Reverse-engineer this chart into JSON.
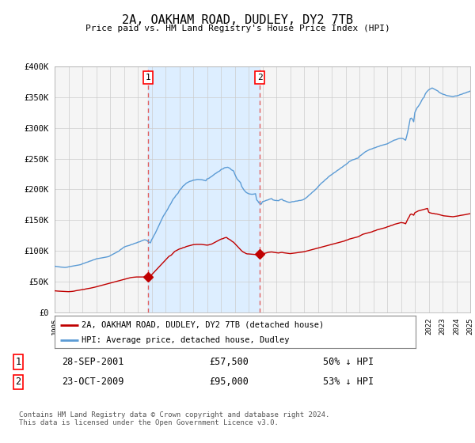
{
  "title": "2A, OAKHAM ROAD, DUDLEY, DY2 7TB",
  "subtitle": "Price paid vs. HM Land Registry's House Price Index (HPI)",
  "background_color": "#ffffff",
  "plot_bg_color": "#f5f5f5",
  "grid_color": "#cccccc",
  "ylim": [
    0,
    400000
  ],
  "yticks": [
    0,
    50000,
    100000,
    150000,
    200000,
    250000,
    300000,
    350000,
    400000
  ],
  "ytick_labels": [
    "£0",
    "£50K",
    "£100K",
    "£150K",
    "£200K",
    "£250K",
    "£300K",
    "£350K",
    "£400K"
  ],
  "year_start": 1995,
  "year_end": 2025,
  "hpi_color": "#5b9bd5",
  "property_color": "#c00000",
  "sale1_date": "28-SEP-2001",
  "sale1_price": 57500,
  "sale1_year": 2001.75,
  "sale1_label": "50% ↓ HPI",
  "sale2_date": "23-OCT-2009",
  "sale2_price": 95000,
  "sale2_year": 2009.8,
  "sale2_label": "53% ↓ HPI",
  "legend_label_property": "2A, OAKHAM ROAD, DUDLEY, DY2 7TB (detached house)",
  "legend_label_hpi": "HPI: Average price, detached house, Dudley",
  "footer": "Contains HM Land Registry data © Crown copyright and database right 2024.\nThis data is licensed under the Open Government Licence v3.0.",
  "vline_color": "#e06060",
  "shade_color": "#ddeeff",
  "hpi_data_years": [
    1995.0,
    1995.083,
    1995.167,
    1995.25,
    1995.333,
    1995.417,
    1995.5,
    1995.583,
    1995.667,
    1995.75,
    1995.833,
    1995.917,
    1996.0,
    1996.083,
    1996.167,
    1996.25,
    1996.333,
    1996.417,
    1996.5,
    1996.583,
    1996.667,
    1996.75,
    1996.833,
    1996.917,
    1997.0,
    1997.083,
    1997.167,
    1997.25,
    1997.333,
    1997.417,
    1997.5,
    1997.583,
    1997.667,
    1997.75,
    1997.833,
    1997.917,
    1998.0,
    1998.083,
    1998.167,
    1998.25,
    1998.333,
    1998.417,
    1998.5,
    1998.583,
    1998.667,
    1998.75,
    1998.833,
    1998.917,
    1999.0,
    1999.083,
    1999.167,
    1999.25,
    1999.333,
    1999.417,
    1999.5,
    1999.583,
    1999.667,
    1999.75,
    1999.833,
    1999.917,
    2000.0,
    2000.083,
    2000.167,
    2000.25,
    2000.333,
    2000.417,
    2000.5,
    2000.583,
    2000.667,
    2000.75,
    2000.833,
    2000.917,
    2001.0,
    2001.083,
    2001.167,
    2001.25,
    2001.333,
    2001.417,
    2001.5,
    2001.583,
    2001.667,
    2001.75,
    2001.833,
    2001.917,
    2002.0,
    2002.083,
    2002.167,
    2002.25,
    2002.333,
    2002.417,
    2002.5,
    2002.583,
    2002.667,
    2002.75,
    2002.833,
    2002.917,
    2003.0,
    2003.083,
    2003.167,
    2003.25,
    2003.333,
    2003.417,
    2003.5,
    2003.583,
    2003.667,
    2003.75,
    2003.833,
    2003.917,
    2004.0,
    2004.083,
    2004.167,
    2004.25,
    2004.333,
    2004.417,
    2004.5,
    2004.583,
    2004.667,
    2004.75,
    2004.833,
    2004.917,
    2005.0,
    2005.083,
    2005.167,
    2005.25,
    2005.333,
    2005.417,
    2005.5,
    2005.583,
    2005.667,
    2005.75,
    2005.833,
    2005.917,
    2006.0,
    2006.083,
    2006.167,
    2006.25,
    2006.333,
    2006.417,
    2006.5,
    2006.583,
    2006.667,
    2006.75,
    2006.833,
    2006.917,
    2007.0,
    2007.083,
    2007.167,
    2007.25,
    2007.333,
    2007.417,
    2007.5,
    2007.583,
    2007.667,
    2007.75,
    2007.833,
    2007.917,
    2008.0,
    2008.083,
    2008.167,
    2008.25,
    2008.333,
    2008.417,
    2008.5,
    2008.583,
    2008.667,
    2008.75,
    2008.833,
    2008.917,
    2009.0,
    2009.083,
    2009.167,
    2009.25,
    2009.333,
    2009.417,
    2009.5,
    2009.583,
    2009.667,
    2009.75,
    2009.833,
    2009.917,
    2010.0,
    2010.083,
    2010.167,
    2010.25,
    2010.333,
    2010.417,
    2010.5,
    2010.583,
    2010.667,
    2010.75,
    2010.833,
    2010.917,
    2011.0,
    2011.083,
    2011.167,
    2011.25,
    2011.333,
    2011.417,
    2011.5,
    2011.583,
    2011.667,
    2011.75,
    2011.833,
    2011.917,
    2012.0,
    2012.083,
    2012.167,
    2012.25,
    2012.333,
    2012.417,
    2012.5,
    2012.583,
    2012.667,
    2012.75,
    2012.833,
    2012.917,
    2013.0,
    2013.083,
    2013.167,
    2013.25,
    2013.333,
    2013.417,
    2013.5,
    2013.583,
    2013.667,
    2013.75,
    2013.833,
    2013.917,
    2014.0,
    2014.083,
    2014.167,
    2014.25,
    2014.333,
    2014.417,
    2014.5,
    2014.583,
    2014.667,
    2014.75,
    2014.833,
    2014.917,
    2015.0,
    2015.083,
    2015.167,
    2015.25,
    2015.333,
    2015.417,
    2015.5,
    2015.583,
    2015.667,
    2015.75,
    2015.833,
    2015.917,
    2016.0,
    2016.083,
    2016.167,
    2016.25,
    2016.333,
    2016.417,
    2016.5,
    2016.583,
    2016.667,
    2016.75,
    2016.833,
    2016.917,
    2017.0,
    2017.083,
    2017.167,
    2017.25,
    2017.333,
    2017.417,
    2017.5,
    2017.583,
    2017.667,
    2017.75,
    2017.833,
    2017.917,
    2018.0,
    2018.083,
    2018.167,
    2018.25,
    2018.333,
    2018.417,
    2018.5,
    2018.583,
    2018.667,
    2018.75,
    2018.833,
    2018.917,
    2019.0,
    2019.083,
    2019.167,
    2019.25,
    2019.333,
    2019.417,
    2019.5,
    2019.583,
    2019.667,
    2019.75,
    2019.833,
    2019.917,
    2020.0,
    2020.083,
    2020.167,
    2020.25,
    2020.333,
    2020.417,
    2020.5,
    2020.583,
    2020.667,
    2020.75,
    2020.833,
    2020.917,
    2021.0,
    2021.083,
    2021.167,
    2021.25,
    2021.333,
    2021.417,
    2021.5,
    2021.583,
    2021.667,
    2021.75,
    2021.833,
    2021.917,
    2022.0,
    2022.083,
    2022.167,
    2022.25,
    2022.333,
    2022.417,
    2022.5,
    2022.583,
    2022.667,
    2022.75,
    2022.833,
    2022.917,
    2023.0,
    2023.083,
    2023.167,
    2023.25,
    2023.333,
    2023.417,
    2023.5,
    2023.583,
    2023.667,
    2023.75,
    2023.833,
    2023.917,
    2024.0,
    2024.083,
    2024.167,
    2024.25,
    2024.333,
    2024.417,
    2024.5,
    2024.583,
    2024.667,
    2024.75,
    2024.833,
    2024.917,
    2025.0
  ],
  "hpi_data_values": [
    75000,
    74800,
    74500,
    74200,
    73900,
    73700,
    73500,
    73300,
    73100,
    73000,
    73200,
    73500,
    74000,
    74300,
    74600,
    75000,
    75400,
    75700,
    76000,
    76400,
    76700,
    77000,
    77400,
    77800,
    79000,
    79500,
    80000,
    81000,
    81500,
    82000,
    83000,
    83500,
    84000,
    85000,
    85500,
    86000,
    87000,
    87300,
    87700,
    88000,
    88300,
    88600,
    89000,
    89300,
    89600,
    90000,
    90400,
    90800,
    92000,
    93000,
    94000,
    95000,
    96000,
    97000,
    98000,
    99000,
    100000,
    102000,
    103000,
    104500,
    106000,
    106800,
    107500,
    108000,
    108500,
    109000,
    110000,
    110500,
    111000,
    112000,
    112500,
    113000,
    114000,
    114500,
    115000,
    116000,
    116800,
    117500,
    118000,
    117500,
    117000,
    115000,
    114000,
    113000,
    118000,
    121000,
    125000,
    128000,
    132000,
    136000,
    140000,
    144000,
    148000,
    152000,
    156000,
    159000,
    162000,
    165000,
    168000,
    172000,
    175000,
    178000,
    182000,
    185000,
    187000,
    190000,
    192000,
    194000,
    198000,
    200000,
    202000,
    205000,
    206500,
    208000,
    210000,
    211000,
    212000,
    213000,
    213500,
    214000,
    215000,
    215200,
    215400,
    216000,
    216200,
    216100,
    216000,
    215800,
    215500,
    215000,
    214500,
    214000,
    217000,
    217500,
    218500,
    220000,
    221000,
    222500,
    224000,
    225500,
    226500,
    228000,
    229000,
    230000,
    232000,
    233000,
    233500,
    235000,
    235500,
    235800,
    236000,
    235000,
    234000,
    232000,
    231000,
    230000,
    225000,
    221000,
    217000,
    215000,
    213000,
    211000,
    205000,
    202000,
    199000,
    197000,
    195000,
    194000,
    193000,
    192500,
    192200,
    192000,
    192200,
    192500,
    193000,
    183000,
    181000,
    178000,
    177000,
    176000,
    180000,
    180500,
    181000,
    182000,
    182500,
    183000,
    184000,
    184500,
    185000,
    183000,
    182500,
    182000,
    182000,
    181800,
    181600,
    183000,
    183500,
    184000,
    182000,
    181500,
    181000,
    180000,
    179500,
    179000,
    179000,
    179500,
    180000,
    180000,
    180500,
    181000,
    181000,
    181500,
    182000,
    182000,
    182500,
    183000,
    184000,
    185000,
    186500,
    188000,
    190000,
    191500,
    193000,
    195000,
    196500,
    198000,
    200000,
    201500,
    204000,
    206000,
    208000,
    210000,
    211500,
    213000,
    215000,
    216500,
    218000,
    220000,
    221500,
    223000,
    224000,
    225500,
    227000,
    228000,
    229500,
    231000,
    232000,
    233500,
    235000,
    236000,
    237500,
    239000,
    240000,
    241500,
    243000,
    245000,
    246000,
    247000,
    248000,
    248500,
    249000,
    250000,
    250500,
    251000,
    254000,
    255000,
    256500,
    258000,
    259500,
    261000,
    262000,
    263000,
    264000,
    265000,
    265500,
    266000,
    267000,
    267500,
    268000,
    269000,
    269500,
    270000,
    271000,
    271500,
    272000,
    272500,
    273000,
    273500,
    274000,
    275000,
    276000,
    277000,
    278000,
    279000,
    280000,
    280500,
    281000,
    282000,
    282500,
    283000,
    283000,
    283000,
    282500,
    281000,
    280000,
    287000,
    295000,
    305000,
    315000,
    316000,
    314000,
    310000,
    325000,
    329000,
    333000,
    335000,
    338000,
    341000,
    345000,
    348000,
    350000,
    355000,
    358000,
    360000,
    362000,
    363000,
    364000,
    365000,
    364000,
    363000,
    362000,
    361000,
    360000,
    358000,
    357000,
    356000,
    355000,
    354500,
    354000,
    353000,
    352500,
    352200,
    352000,
    351500,
    351200,
    351000,
    351500,
    352000,
    352000,
    352500,
    353000,
    354000,
    354500,
    355000,
    356000,
    356500,
    357000,
    358000,
    358500,
    359000,
    360000
  ],
  "prop_data_years": [
    1995.0,
    1995.083,
    1995.167,
    1995.25,
    1995.333,
    1995.417,
    1995.5,
    1995.583,
    1995.667,
    1995.75,
    1995.833,
    1995.917,
    1996.0,
    1996.083,
    1996.167,
    1996.25,
    1996.333,
    1996.417,
    1996.5,
    1996.583,
    1996.667,
    1996.75,
    1996.833,
    1996.917,
    1997.0,
    1997.083,
    1997.167,
    1997.25,
    1997.333,
    1997.417,
    1997.5,
    1997.583,
    1997.667,
    1997.75,
    1997.833,
    1997.917,
    1998.0,
    1998.083,
    1998.167,
    1998.25,
    1998.333,
    1998.417,
    1998.5,
    1998.583,
    1998.667,
    1998.75,
    1998.833,
    1998.917,
    1999.0,
    1999.083,
    1999.167,
    1999.25,
    1999.333,
    1999.417,
    1999.5,
    1999.583,
    1999.667,
    1999.75,
    1999.833,
    1999.917,
    2000.0,
    2000.083,
    2000.167,
    2000.25,
    2000.333,
    2000.417,
    2000.5,
    2000.583,
    2000.667,
    2000.75,
    2000.833,
    2000.917,
    2001.0,
    2001.083,
    2001.167,
    2001.25,
    2001.333,
    2001.417,
    2001.5,
    2001.583,
    2001.667,
    2001.75,
    2001.833,
    2001.917,
    2002.0,
    2002.083,
    2002.167,
    2002.25,
    2002.333,
    2002.417,
    2002.5,
    2002.583,
    2002.667,
    2002.75,
    2002.833,
    2002.917,
    2003.0,
    2003.083,
    2003.167,
    2003.25,
    2003.333,
    2003.417,
    2003.5,
    2003.583,
    2003.667,
    2003.75,
    2003.833,
    2003.917,
    2004.0,
    2004.083,
    2004.167,
    2004.25,
    2004.333,
    2004.417,
    2004.5,
    2004.583,
    2004.667,
    2004.75,
    2004.833,
    2004.917,
    2005.0,
    2005.083,
    2005.167,
    2005.25,
    2005.333,
    2005.417,
    2005.5,
    2005.583,
    2005.667,
    2005.75,
    2005.833,
    2005.917,
    2006.0,
    2006.083,
    2006.167,
    2006.25,
    2006.333,
    2006.417,
    2006.5,
    2006.583,
    2006.667,
    2006.75,
    2006.833,
    2006.917,
    2007.0,
    2007.083,
    2007.167,
    2007.25,
    2007.333,
    2007.417,
    2007.5,
    2007.583,
    2007.667,
    2007.75,
    2007.833,
    2007.917,
    2008.0,
    2008.083,
    2008.167,
    2008.25,
    2008.333,
    2008.417,
    2008.5,
    2008.583,
    2008.667,
    2008.75,
    2008.833,
    2008.917,
    2009.0,
    2009.083,
    2009.167,
    2009.25,
    2009.333,
    2009.417,
    2009.5,
    2009.583,
    2009.667,
    2009.75,
    2009.833,
    2009.917,
    2010.0,
    2010.083,
    2010.167,
    2010.25,
    2010.333,
    2010.417,
    2010.5,
    2010.583,
    2010.667,
    2010.75,
    2010.833,
    2010.917,
    2011.0,
    2011.083,
    2011.167,
    2011.25,
    2011.333,
    2011.417,
    2011.5,
    2011.583,
    2011.667,
    2011.75,
    2011.833,
    2011.917,
    2012.0,
    2012.083,
    2012.167,
    2012.25,
    2012.333,
    2012.417,
    2012.5,
    2012.583,
    2012.667,
    2012.75,
    2012.833,
    2012.917,
    2013.0,
    2013.083,
    2013.167,
    2013.25,
    2013.333,
    2013.417,
    2013.5,
    2013.583,
    2013.667,
    2013.75,
    2013.833,
    2013.917,
    2014.0,
    2014.083,
    2014.167,
    2014.25,
    2014.333,
    2014.417,
    2014.5,
    2014.583,
    2014.667,
    2014.75,
    2014.833,
    2014.917,
    2015.0,
    2015.083,
    2015.167,
    2015.25,
    2015.333,
    2015.417,
    2015.5,
    2015.583,
    2015.667,
    2015.75,
    2015.833,
    2015.917,
    2016.0,
    2016.083,
    2016.167,
    2016.25,
    2016.333,
    2016.417,
    2016.5,
    2016.583,
    2016.667,
    2016.75,
    2016.833,
    2016.917,
    2017.0,
    2017.083,
    2017.167,
    2017.25,
    2017.333,
    2017.417,
    2017.5,
    2017.583,
    2017.667,
    2017.75,
    2017.833,
    2017.917,
    2018.0,
    2018.083,
    2018.167,
    2018.25,
    2018.333,
    2018.417,
    2018.5,
    2018.583,
    2018.667,
    2018.75,
    2018.833,
    2018.917,
    2019.0,
    2019.083,
    2019.167,
    2019.25,
    2019.333,
    2019.417,
    2019.5,
    2019.583,
    2019.667,
    2019.75,
    2019.833,
    2019.917,
    2020.0,
    2020.083,
    2020.167,
    2020.25,
    2020.333,
    2020.417,
    2020.5,
    2020.583,
    2020.667,
    2020.75,
    2020.833,
    2020.917,
    2021.0,
    2021.083,
    2021.167,
    2021.25,
    2021.333,
    2021.417,
    2021.5,
    2021.583,
    2021.667,
    2021.75,
    2021.833,
    2021.917,
    2022.0,
    2022.083,
    2022.167,
    2022.25,
    2022.333,
    2022.417,
    2022.5,
    2022.583,
    2022.667,
    2022.75,
    2022.833,
    2022.917,
    2023.0,
    2023.083,
    2023.167,
    2023.25,
    2023.333,
    2023.417,
    2023.5,
    2023.583,
    2023.667,
    2023.75,
    2023.833,
    2023.917,
    2024.0,
    2024.083,
    2024.167,
    2024.25,
    2024.333,
    2024.417,
    2024.5,
    2024.583,
    2024.667,
    2024.75,
    2024.833,
    2024.917,
    2025.0
  ],
  "prop_data_values": [
    35000,
    34800,
    34600,
    34500,
    34400,
    34300,
    34200,
    34100,
    34000,
    33900,
    33800,
    33700,
    33600,
    33700,
    33800,
    34000,
    34200,
    34500,
    35000,
    35300,
    35600,
    36000,
    36300,
    36600,
    37000,
    37200,
    37500,
    38000,
    38300,
    38700,
    39000,
    39300,
    39700,
    40000,
    40500,
    41000,
    41500,
    42000,
    42500,
    43000,
    43500,
    44000,
    44500,
    45000,
    45500,
    46000,
    46500,
    47000,
    47500,
    48000,
    48500,
    49000,
    49500,
    50000,
    50500,
    51000,
    51500,
    52000,
    52500,
    53000,
    53500,
    54000,
    54500,
    55000,
    55500,
    56000,
    56500,
    56800,
    57000,
    57200,
    57400,
    57500,
    57500,
    57500,
    57500,
    57500,
    57500,
    57500,
    57500,
    57500,
    57500,
    57500,
    58000,
    59000,
    61000,
    63000,
    65000,
    67000,
    69000,
    71000,
    73000,
    75000,
    77000,
    79000,
    81000,
    83000,
    85000,
    87000,
    89000,
    91000,
    92000,
    93000,
    95000,
    97000,
    99000,
    100000,
    101000,
    102000,
    103000,
    103500,
    104000,
    105000,
    105500,
    106000,
    107000,
    107500,
    108000,
    108500,
    109000,
    109500,
    110000,
    110200,
    110400,
    110500,
    110500,
    110500,
    110500,
    110500,
    110300,
    110000,
    109800,
    109500,
    109300,
    109500,
    110000,
    110500,
    111000,
    112000,
    113000,
    114000,
    115000,
    116000,
    117000,
    118000,
    119000,
    119500,
    120000,
    121000,
    121500,
    121800,
    120000,
    119000,
    118000,
    116500,
    115000,
    114000,
    112000,
    110000,
    108000,
    106000,
    104000,
    102000,
    100000,
    98500,
    97500,
    96500,
    95500,
    95000,
    95000,
    94800,
    94600,
    94500,
    94400,
    94200,
    94000,
    94200,
    94500,
    95000,
    94800,
    94500,
    95000,
    95500,
    96000,
    96500,
    97000,
    97500,
    97800,
    98000,
    98200,
    97800,
    97500,
    97200,
    97000,
    96800,
    96500,
    97000,
    97200,
    97500,
    97000,
    96800,
    96500,
    96200,
    96000,
    95800,
    95500,
    95800,
    96000,
    96200,
    96400,
    96700,
    97000,
    97200,
    97500,
    97800,
    98000,
    98200,
    98500,
    99000,
    99500,
    100000,
    100500,
    101000,
    101500,
    102000,
    102500,
    103000,
    103500,
    104000,
    104500,
    105000,
    105500,
    106000,
    106500,
    107000,
    107500,
    108000,
    108500,
    109000,
    109500,
    110000,
    110500,
    111000,
    111500,
    112000,
    112500,
    113000,
    113500,
    114000,
    114500,
    115000,
    115500,
    116000,
    117000,
    117500,
    118000,
    119000,
    119500,
    120000,
    120500,
    121000,
    121500,
    122000,
    122500,
    123000,
    124000,
    125000,
    126000,
    127000,
    127500,
    128000,
    128500,
    129000,
    129500,
    130000,
    130500,
    131000,
    132000,
    132500,
    133000,
    134000,
    134500,
    135000,
    135500,
    136000,
    136500,
    137000,
    137500,
    138000,
    139000,
    139500,
    140000,
    141000,
    141500,
    142000,
    143000,
    143500,
    144000,
    144500,
    145000,
    145500,
    146000,
    145800,
    145500,
    145000,
    144000,
    148000,
    152000,
    155000,
    159000,
    160000,
    159000,
    158000,
    162000,
    163000,
    164000,
    165000,
    165500,
    166000,
    166500,
    167000,
    167500,
    168000,
    168500,
    169000,
    163000,
    162000,
    161500,
    161000,
    161000,
    160500,
    160000,
    160000,
    159500,
    159000,
    158500,
    158000,
    157500,
    157000,
    156800,
    156500,
    156300,
    156200,
    156000,
    155800,
    155600,
    155500,
    155800,
    156000,
    156500,
    156800,
    157000,
    157500,
    157800,
    158000,
    158500,
    158800,
    159000,
    159500,
    159800,
    160000,
    160500
  ]
}
